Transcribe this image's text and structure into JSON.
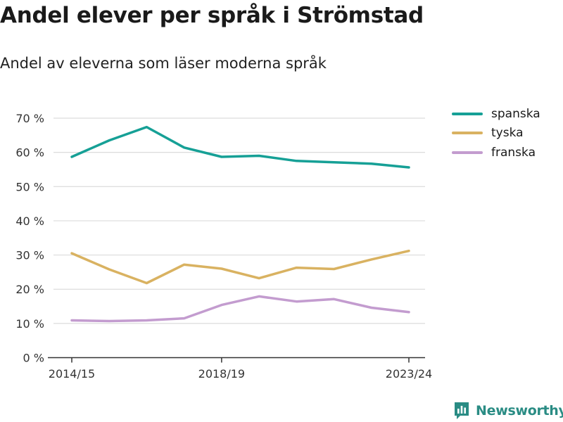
{
  "chart_data": {
    "type": "line",
    "title": "Andel elever per språk i Strömstad",
    "subtitle": "Andel av eleverna som läser moderna språk",
    "x": [
      "2014/15",
      "2015/16",
      "2016/17",
      "2017/18",
      "2018/19",
      "2019/20",
      "2020/21",
      "2021/22",
      "2022/23",
      "2023/24"
    ],
    "x_tick_labels": [
      "2014/15",
      "2018/19",
      "2023/24"
    ],
    "y_ticks": [
      0,
      10,
      20,
      30,
      40,
      50,
      60,
      70
    ],
    "y_tick_labels": [
      "0 %",
      "10 %",
      "20 %",
      "30 %",
      "40 %",
      "50 %",
      "60 %",
      "70 %"
    ],
    "ylim": [
      0,
      70
    ],
    "grid": true,
    "legend_position": "right",
    "series": [
      {
        "name": "spanska",
        "color": "#16a096",
        "values": [
          58.7,
          63.5,
          67.4,
          61.4,
          58.7,
          59.0,
          57.5,
          57.1,
          56.7,
          55.6
        ]
      },
      {
        "name": "tyska",
        "color": "#d9b261",
        "values": [
          30.5,
          25.8,
          21.8,
          27.2,
          26.0,
          23.2,
          26.3,
          25.9,
          28.7,
          31.2
        ]
      },
      {
        "name": "franska",
        "color": "#c39ccf",
        "values": [
          10.9,
          10.7,
          10.9,
          11.5,
          15.4,
          17.9,
          16.4,
          17.1,
          14.6,
          13.3
        ]
      }
    ]
  },
  "brand": {
    "name": "Newsworthy",
    "icon": "newsworthy-logo-icon"
  }
}
